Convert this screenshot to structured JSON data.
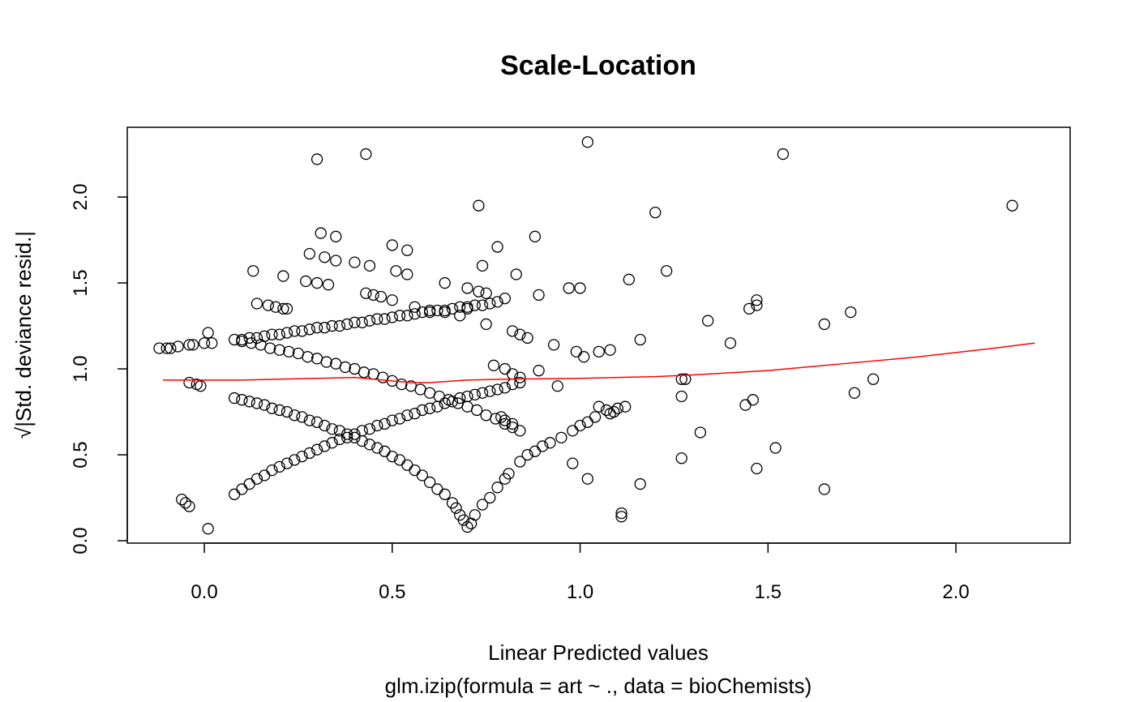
{
  "chart_data": {
    "type": "scatter",
    "title": "Scale-Location",
    "xlabel": "Linear Predicted values",
    "subtitle": "glm.izip(formula = art ~ ., data = bioChemists)",
    "ylabel": "√|Std. deviance resid.|",
    "xlim": [
      -0.205,
      2.304
    ],
    "ylim": [
      -0.014,
      2.406
    ],
    "x_ticks": [
      "0.0",
      "0.5",
      "1.0",
      "1.5",
      "2.0"
    ],
    "y_ticks": [
      "0.0",
      "0.5",
      "1.0",
      "1.5",
      "2.0"
    ],
    "grid": false,
    "point_style": "open-circle",
    "colors": {
      "points": "#000000",
      "smooth_line": "#ff0000"
    },
    "points": [
      [
        0.08,
        0.83
      ],
      [
        0.1,
        0.82
      ],
      [
        0.12,
        0.81
      ],
      [
        0.14,
        0.8
      ],
      [
        0.16,
        0.79
      ],
      [
        0.18,
        0.77
      ],
      [
        0.2,
        0.76
      ],
      [
        0.22,
        0.75
      ],
      [
        0.24,
        0.73
      ],
      [
        0.26,
        0.72
      ],
      [
        0.28,
        0.7
      ],
      [
        0.3,
        0.69
      ],
      [
        0.32,
        0.67
      ],
      [
        0.34,
        0.65
      ],
      [
        0.36,
        0.64
      ],
      [
        0.38,
        0.62
      ],
      [
        0.4,
        0.6
      ],
      [
        0.42,
        0.58
      ],
      [
        0.44,
        0.56
      ],
      [
        0.46,
        0.54
      ],
      [
        0.48,
        0.52
      ],
      [
        0.5,
        0.49
      ],
      [
        0.52,
        0.47
      ],
      [
        0.54,
        0.44
      ],
      [
        0.56,
        0.41
      ],
      [
        0.58,
        0.38
      ],
      [
        0.6,
        0.34
      ],
      [
        0.62,
        0.3
      ],
      [
        0.64,
        0.27
      ],
      [
        0.66,
        0.22
      ],
      [
        0.67,
        0.19
      ],
      [
        0.68,
        0.15
      ],
      [
        0.69,
        0.12
      ],
      [
        0.7,
        0.08
      ],
      [
        0.71,
        0.1
      ],
      [
        0.08,
        0.27
      ],
      [
        0.1,
        0.3
      ],
      [
        0.12,
        0.33
      ],
      [
        0.14,
        0.36
      ],
      [
        0.16,
        0.38
      ],
      [
        0.18,
        0.41
      ],
      [
        0.2,
        0.43
      ],
      [
        0.22,
        0.45
      ],
      [
        0.24,
        0.47
      ],
      [
        0.26,
        0.49
      ],
      [
        0.28,
        0.51
      ],
      [
        0.3,
        0.53
      ],
      [
        0.32,
        0.55
      ],
      [
        0.34,
        0.57
      ],
      [
        0.36,
        0.59
      ],
      [
        0.38,
        0.6
      ],
      [
        0.4,
        0.62
      ],
      [
        0.42,
        0.64
      ],
      [
        0.44,
        0.65
      ],
      [
        0.46,
        0.67
      ],
      [
        0.48,
        0.68
      ],
      [
        0.5,
        0.7
      ],
      [
        0.52,
        0.71
      ],
      [
        0.54,
        0.73
      ],
      [
        0.56,
        0.74
      ],
      [
        0.58,
        0.76
      ],
      [
        0.6,
        0.77
      ],
      [
        0.62,
        0.78
      ],
      [
        0.64,
        0.8
      ],
      [
        0.66,
        0.81
      ],
      [
        0.68,
        0.83
      ],
      [
        0.7,
        0.84
      ],
      [
        0.72,
        0.85
      ],
      [
        0.74,
        0.86
      ],
      [
        0.76,
        0.87
      ],
      [
        0.78,
        0.88
      ],
      [
        0.8,
        0.89
      ],
      [
        0.82,
        0.91
      ],
      [
        0.84,
        0.92
      ],
      [
        0.1,
        1.17
      ],
      [
        0.12,
        1.18
      ],
      [
        0.14,
        1.18
      ],
      [
        0.16,
        1.19
      ],
      [
        0.18,
        1.2
      ],
      [
        0.2,
        1.2
      ],
      [
        0.22,
        1.21
      ],
      [
        0.24,
        1.22
      ],
      [
        0.26,
        1.22
      ],
      [
        0.28,
        1.23
      ],
      [
        0.3,
        1.24
      ],
      [
        0.32,
        1.24
      ],
      [
        0.34,
        1.25
      ],
      [
        0.36,
        1.25
      ],
      [
        0.38,
        1.26
      ],
      [
        0.4,
        1.27
      ],
      [
        0.42,
        1.27
      ],
      [
        0.44,
        1.28
      ],
      [
        0.46,
        1.29
      ],
      [
        0.48,
        1.29
      ],
      [
        0.5,
        1.3
      ],
      [
        0.52,
        1.31
      ],
      [
        0.54,
        1.31
      ],
      [
        0.56,
        1.32
      ],
      [
        0.58,
        1.33
      ],
      [
        0.6,
        1.33
      ],
      [
        0.62,
        1.34
      ],
      [
        0.64,
        1.34
      ],
      [
        0.66,
        1.35
      ],
      [
        0.68,
        1.36
      ],
      [
        0.7,
        1.36
      ],
      [
        0.72,
        1.37
      ],
      [
        0.74,
        1.37
      ],
      [
        0.76,
        1.38
      ],
      [
        0.1,
        1.16
      ],
      [
        0.125,
        1.15
      ],
      [
        0.15,
        1.14
      ],
      [
        0.175,
        1.12
      ],
      [
        0.2,
        1.11
      ],
      [
        0.225,
        1.1
      ],
      [
        0.25,
        1.09
      ],
      [
        0.275,
        1.07
      ],
      [
        0.3,
        1.06
      ],
      [
        0.325,
        1.04
      ],
      [
        0.35,
        1.03
      ],
      [
        0.375,
        1.01
      ],
      [
        0.4,
        1.0
      ],
      [
        0.425,
        0.98
      ],
      [
        0.45,
        0.97
      ],
      [
        0.475,
        0.95
      ],
      [
        0.5,
        0.93
      ],
      [
        0.525,
        0.91
      ],
      [
        0.55,
        0.9
      ],
      [
        0.575,
        0.88
      ],
      [
        0.6,
        0.86
      ],
      [
        0.625,
        0.84
      ],
      [
        0.65,
        0.82
      ],
      [
        0.675,
        0.8
      ],
      [
        0.7,
        0.78
      ],
      [
        0.725,
        0.76
      ],
      [
        0.75,
        0.73
      ],
      [
        0.775,
        0.71
      ],
      [
        0.8,
        0.68
      ],
      [
        0.82,
        0.66
      ],
      [
        0.84,
        0.64
      ],
      [
        0.72,
        0.15
      ],
      [
        0.74,
        0.21
      ],
      [
        0.76,
        0.25
      ],
      [
        0.78,
        0.31
      ],
      [
        0.8,
        0.36
      ],
      [
        0.81,
        0.39
      ],
      [
        0.84,
        0.46
      ],
      [
        0.86,
        0.5
      ],
      [
        0.88,
        0.52
      ],
      [
        0.9,
        0.55
      ],
      [
        0.92,
        0.57
      ],
      [
        0.95,
        0.6
      ],
      [
        0.98,
        0.64
      ],
      [
        1.0,
        0.67
      ],
      [
        1.02,
        0.69
      ],
      [
        1.04,
        0.72
      ],
      [
        1.05,
        0.78
      ],
      [
        1.07,
        0.76
      ],
      [
        1.08,
        0.74
      ],
      [
        1.09,
        0.75
      ],
      [
        1.1,
        0.77
      ],
      [
        1.12,
        0.78
      ],
      [
        0.78,
        1.39
      ],
      [
        0.8,
        1.41
      ],
      [
        0.82,
        1.22
      ],
      [
        0.84,
        1.2
      ],
      [
        0.86,
        1.18
      ],
      [
        0.77,
        1.02
      ],
      [
        0.8,
        1.0
      ],
      [
        0.82,
        0.97
      ],
      [
        0.84,
        0.95
      ],
      [
        0.79,
        0.72
      ],
      [
        0.8,
        0.7
      ],
      [
        0.82,
        0.68
      ],
      [
        0.14,
        1.38
      ],
      [
        0.17,
        1.37
      ],
      [
        0.19,
        1.36
      ],
      [
        0.21,
        1.35
      ],
      [
        0.22,
        1.35
      ],
      [
        0.43,
        1.44
      ],
      [
        0.45,
        1.43
      ],
      [
        0.47,
        1.42
      ],
      [
        0.5,
        1.4
      ],
      [
        0.56,
        1.36
      ],
      [
        0.6,
        1.34
      ],
      [
        0.64,
        1.33
      ],
      [
        0.68,
        1.31
      ],
      [
        0.7,
        1.35
      ],
      [
        -0.12,
        1.12
      ],
      [
        -0.1,
        1.12
      ],
      [
        -0.09,
        1.12
      ],
      [
        -0.07,
        1.13
      ],
      [
        -0.04,
        1.14
      ],
      [
        -0.03,
        1.14
      ],
      [
        0.0,
        1.15
      ],
      [
        0.01,
        1.21
      ],
      [
        0.02,
        1.15
      ],
      [
        0.08,
        1.17
      ],
      [
        -0.04,
        0.92
      ],
      [
        -0.02,
        0.91
      ],
      [
        -0.01,
        0.9
      ],
      [
        -0.06,
        0.24
      ],
      [
        -0.05,
        0.22
      ],
      [
        -0.04,
        0.2
      ],
      [
        0.01,
        0.07
      ],
      [
        0.3,
        2.22
      ],
      [
        0.43,
        2.25
      ],
      [
        1.02,
        2.32
      ],
      [
        1.54,
        2.25
      ],
      [
        2.15,
        1.95
      ],
      [
        0.73,
        1.95
      ],
      [
        1.2,
        1.91
      ],
      [
        0.31,
        1.79
      ],
      [
        0.35,
        1.77
      ],
      [
        0.88,
        1.77
      ],
      [
        0.5,
        1.72
      ],
      [
        0.54,
        1.69
      ],
      [
        0.78,
        1.71
      ],
      [
        0.28,
        1.67
      ],
      [
        0.32,
        1.65
      ],
      [
        0.35,
        1.63
      ],
      [
        0.4,
        1.62
      ],
      [
        0.44,
        1.6
      ],
      [
        0.13,
        1.57
      ],
      [
        0.51,
        1.57
      ],
      [
        0.54,
        1.55
      ],
      [
        0.74,
        1.6
      ],
      [
        0.83,
        1.55
      ],
      [
        1.23,
        1.57
      ],
      [
        1.13,
        1.52
      ],
      [
        0.64,
        1.5
      ],
      [
        0.27,
        1.51
      ],
      [
        0.3,
        1.5
      ],
      [
        0.33,
        1.49
      ],
      [
        0.21,
        1.54
      ],
      [
        0.97,
        1.47
      ],
      [
        1.0,
        1.47
      ],
      [
        0.89,
        1.43
      ],
      [
        0.7,
        1.47
      ],
      [
        0.73,
        1.45
      ],
      [
        0.75,
        1.44
      ],
      [
        1.47,
        1.4
      ],
      [
        1.45,
        1.35
      ],
      [
        1.47,
        1.37
      ],
      [
        1.72,
        1.33
      ],
      [
        1.34,
        1.28
      ],
      [
        1.65,
        1.26
      ],
      [
        0.75,
        1.26
      ],
      [
        1.16,
        1.17
      ],
      [
        1.4,
        1.15
      ],
      [
        0.93,
        1.14
      ],
      [
        1.05,
        1.1
      ],
      [
        1.08,
        1.11
      ],
      [
        0.99,
        1.1
      ],
      [
        1.01,
        1.07
      ],
      [
        0.89,
        0.99
      ],
      [
        0.94,
        0.9
      ],
      [
        1.28,
        0.94
      ],
      [
        1.27,
        0.94
      ],
      [
        1.78,
        0.94
      ],
      [
        1.27,
        0.84
      ],
      [
        1.73,
        0.86
      ],
      [
        1.46,
        0.82
      ],
      [
        1.44,
        0.79
      ],
      [
        1.32,
        0.63
      ],
      [
        1.52,
        0.54
      ],
      [
        1.27,
        0.48
      ],
      [
        1.47,
        0.42
      ],
      [
        0.98,
        0.45
      ],
      [
        1.02,
        0.36
      ],
      [
        1.65,
        0.3
      ],
      [
        1.16,
        0.33
      ],
      [
        1.11,
        0.16
      ],
      [
        1.11,
        0.14
      ]
    ],
    "smooth_line": [
      [
        -0.11,
        0.935
      ],
      [
        0.0,
        0.935
      ],
      [
        0.1,
        0.935
      ],
      [
        0.2,
        0.94
      ],
      [
        0.3,
        0.945
      ],
      [
        0.4,
        0.95
      ],
      [
        0.5,
        0.93
      ],
      [
        0.55,
        0.92
      ],
      [
        0.6,
        0.92
      ],
      [
        0.7,
        0.935
      ],
      [
        0.8,
        0.94
      ],
      [
        1.0,
        0.945
      ],
      [
        1.2,
        0.955
      ],
      [
        1.3,
        0.965
      ],
      [
        1.5,
        0.99
      ],
      [
        1.7,
        1.03
      ],
      [
        1.9,
        1.07
      ],
      [
        2.1,
        1.12
      ],
      [
        2.21,
        1.15
      ]
    ]
  }
}
